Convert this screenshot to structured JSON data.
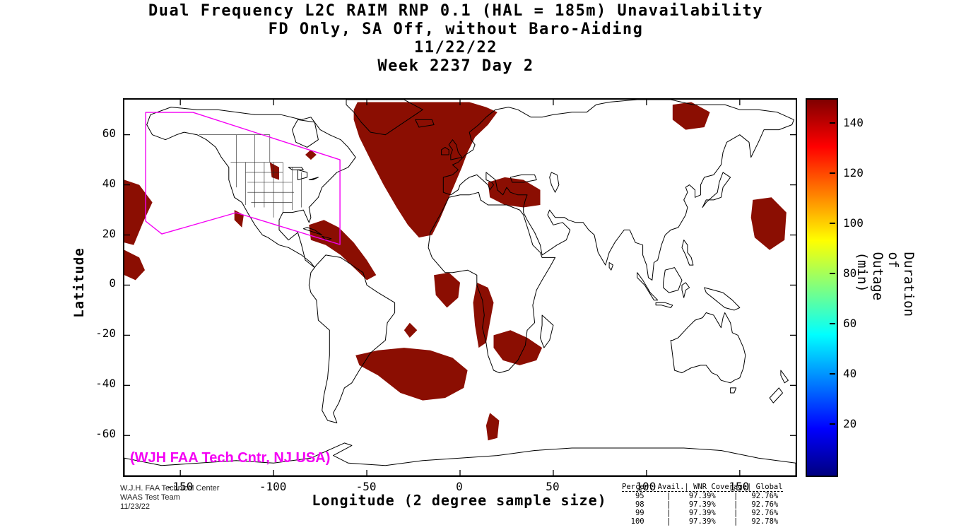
{
  "title": {
    "line1": "Dual Frequency L2C RAIM RNP 0.1 (HAL = 185m) Unavailability",
    "line2": "FD Only, SA Off, without Baro-Aiding",
    "line3": "11/22/22",
    "line4": "Week 2237 Day 2"
  },
  "axes": {
    "x_label": "Longitude (2 degree sample size)",
    "y_label": "Latitude",
    "x_ticks": [
      -150,
      -100,
      -50,
      0,
      50,
      100,
      150
    ],
    "y_ticks": [
      60,
      40,
      20,
      0,
      -20,
      -40,
      -60
    ],
    "x_range": [
      -180,
      180
    ],
    "y_range": [
      -76,
      74
    ]
  },
  "colorbar": {
    "label": "Duration of Outage (min)",
    "ticks": [
      20,
      40,
      60,
      80,
      100,
      120,
      140
    ],
    "range": [
      0,
      150
    ],
    "colormap": "jet"
  },
  "annotations": {
    "service_volume_label": "(WJH FAA Tech Cntr, NJ USA)",
    "magenta": "#F400F4"
  },
  "credits": {
    "line1": "W.J.H. FAA Technical Center",
    "line2": "WAAS Test Team",
    "line3": "11/23/22"
  },
  "stats_table": {
    "columns": [
      "Percent Avail.",
      "WNR Coverage",
      "Global"
    ],
    "rows": [
      {
        "avail": "95",
        "wnr": "97.39%",
        "global": "92.76%"
      },
      {
        "avail": "98",
        "wnr": "97.39%",
        "global": "92.76%"
      },
      {
        "avail": "99",
        "wnr": "97.39%",
        "global": "92.76%"
      },
      {
        "avail": "100",
        "wnr": "97.39%",
        "global": "92.78%"
      }
    ]
  },
  "chart_data": {
    "type": "heatmap",
    "units": "minutes of outage",
    "outage_color": "#8B0E02",
    "outage_minutes_approx": 150,
    "regions": [
      {
        "name": "pacific-west-edge-north",
        "polygon": [
          [
            -180,
            42
          ],
          [
            -172,
            40
          ],
          [
            -165,
            33
          ],
          [
            -170,
            25
          ],
          [
            -175,
            16
          ],
          [
            -180,
            17
          ]
        ]
      },
      {
        "name": "pacific-west-edge-equatorial",
        "polygon": [
          [
            -180,
            14
          ],
          [
            -172,
            11
          ],
          [
            -169,
            6
          ],
          [
            -174,
            2
          ],
          [
            -180,
            4
          ]
        ]
      },
      {
        "name": "quebec-small",
        "polygon": [
          [
            -80,
            54
          ],
          [
            -77,
            52
          ],
          [
            -80,
            50
          ],
          [
            -83,
            52
          ]
        ]
      },
      {
        "name": "northern-plains-small",
        "polygon": [
          [
            -102,
            49
          ],
          [
            -97,
            47
          ],
          [
            -97,
            42
          ],
          [
            -101,
            43
          ]
        ]
      },
      {
        "name": "baja-coast-small",
        "polygon": [
          [
            -121,
            30
          ],
          [
            -116,
            28
          ],
          [
            -117,
            23
          ],
          [
            -121,
            26
          ]
        ]
      },
      {
        "name": "caribbean-band",
        "polygon": [
          [
            -81,
            24
          ],
          [
            -73,
            26
          ],
          [
            -65,
            23
          ],
          [
            -57,
            17
          ],
          [
            -50,
            10
          ],
          [
            -45,
            4
          ],
          [
            -50,
            2
          ],
          [
            -57,
            7
          ],
          [
            -64,
            12
          ],
          [
            -72,
            16
          ],
          [
            -80,
            18
          ]
        ]
      },
      {
        "name": "greenland-north-atlantic",
        "polygon": [
          [
            -55,
            73
          ],
          [
            -35,
            73
          ],
          [
            -15,
            73
          ],
          [
            5,
            73
          ],
          [
            14,
            71
          ],
          [
            20,
            69
          ],
          [
            15,
            64
          ],
          [
            8,
            59
          ],
          [
            4,
            53
          ],
          [
            1,
            47
          ],
          [
            -3,
            40
          ],
          [
            -7,
            33
          ],
          [
            -11,
            26
          ],
          [
            -15,
            20
          ],
          [
            -22,
            19
          ],
          [
            -28,
            24
          ],
          [
            -34,
            31
          ],
          [
            -41,
            40
          ],
          [
            -48,
            50
          ],
          [
            -54,
            59
          ],
          [
            -57,
            66
          ],
          [
            -57,
            70
          ]
        ]
      },
      {
        "name": "turkey-middle-east",
        "polygon": [
          [
            15,
            41
          ],
          [
            24,
            43
          ],
          [
            34,
            42
          ],
          [
            43,
            38
          ],
          [
            43,
            32
          ],
          [
            34,
            31
          ],
          [
            24,
            32
          ],
          [
            16,
            35
          ]
        ]
      },
      {
        "name": "gulf-of-guinea",
        "polygon": [
          [
            -14,
            4
          ],
          [
            -6,
            5
          ],
          [
            0,
            1
          ],
          [
            -1,
            -5
          ],
          [
            -7,
            -9
          ],
          [
            -13,
            -4
          ]
        ]
      },
      {
        "name": "angola-coast",
        "polygon": [
          [
            9,
            1
          ],
          [
            15,
            -1
          ],
          [
            18,
            -7
          ],
          [
            16,
            -15
          ],
          [
            14,
            -23
          ],
          [
            10,
            -25
          ],
          [
            8,
            -16
          ],
          [
            7,
            -7
          ]
        ]
      },
      {
        "name": "southern-africa",
        "polygon": [
          [
            18,
            -20
          ],
          [
            27,
            -18
          ],
          [
            36,
            -21
          ],
          [
            44,
            -25
          ],
          [
            41,
            -30
          ],
          [
            32,
            -32
          ],
          [
            23,
            -30
          ],
          [
            18,
            -25
          ]
        ]
      },
      {
        "name": "south-atlantic",
        "polygon": [
          [
            -56,
            -28
          ],
          [
            -44,
            -26
          ],
          [
            -30,
            -25
          ],
          [
            -16,
            -26
          ],
          [
            -4,
            -29
          ],
          [
            4,
            -34
          ],
          [
            2,
            -41
          ],
          [
            -8,
            -45
          ],
          [
            -20,
            -46
          ],
          [
            -32,
            -43
          ],
          [
            -44,
            -36
          ],
          [
            -54,
            -32
          ]
        ]
      },
      {
        "name": "south-atlantic-small",
        "polygon": [
          [
            -27,
            -15
          ],
          [
            -23,
            -18
          ],
          [
            -27,
            -21
          ],
          [
            -30,
            -18
          ]
        ]
      },
      {
        "name": "south-of-africa-small",
        "polygon": [
          [
            16,
            -51
          ],
          [
            21,
            -54
          ],
          [
            20,
            -61
          ],
          [
            15,
            -62
          ],
          [
            14,
            -56
          ]
        ]
      },
      {
        "name": "east-siberia",
        "polygon": [
          [
            114,
            72
          ],
          [
            124,
            73
          ],
          [
            134,
            69
          ],
          [
            131,
            63
          ],
          [
            121,
            62
          ],
          [
            114,
            66
          ]
        ]
      },
      {
        "name": "west-pacific",
        "polygon": [
          [
            157,
            34
          ],
          [
            167,
            35
          ],
          [
            175,
            29
          ],
          [
            174,
            18
          ],
          [
            166,
            14
          ],
          [
            158,
            19
          ],
          [
            156,
            27
          ]
        ]
      }
    ],
    "service_volume_polygon": [
      [
        -168.6,
        68.9
      ],
      [
        -143.2,
        68.9
      ],
      [
        -64.4,
        50.0
      ],
      [
        -64.4,
        16.2
      ],
      [
        -120.1,
        28.9
      ],
      [
        -159.9,
        20.4
      ],
      [
        -168.6,
        25.5
      ]
    ]
  }
}
